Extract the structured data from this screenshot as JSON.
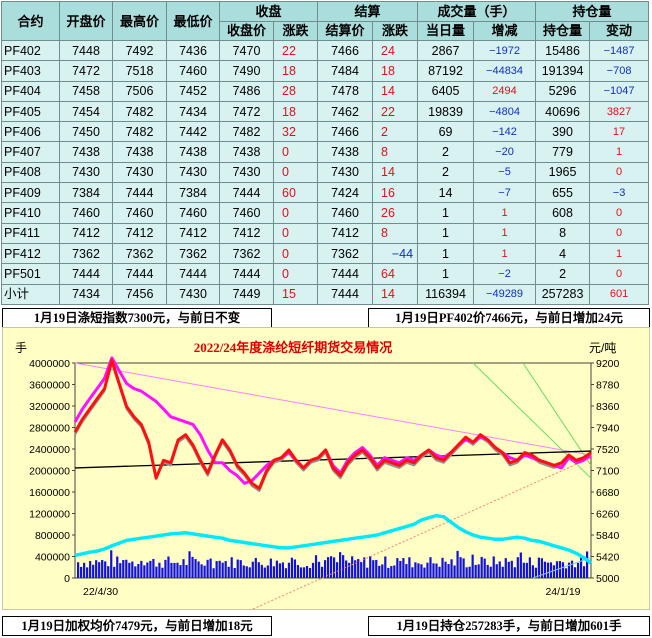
{
  "table": {
    "headers": {
      "contract": "合约",
      "open": "开盘价",
      "high": "最高价",
      "low": "最低价",
      "close_group": "收盘",
      "settle_group": "结算",
      "volume_group": "成交量（手）",
      "oi_group": "持仓量",
      "close_price": "收盘价",
      "close_change": "涨跌",
      "settle_price": "结算价",
      "settle_change": "涨跌",
      "volume_today": "当日量",
      "volume_change": "增减",
      "oi_qty": "持仓量",
      "oi_change": "变动"
    },
    "rows": [
      {
        "contract": "PF402",
        "open": "7448",
        "high": "7492",
        "low": "7436",
        "close": "7470",
        "close_chg": "22",
        "settle": "7466",
        "settle_chg": "24",
        "vol": "2867",
        "vol_chg": "−1972",
        "oi": "15486",
        "oi_chg": "−1487"
      },
      {
        "contract": "PF403",
        "open": "7472",
        "high": "7518",
        "low": "7460",
        "close": "7490",
        "close_chg": "18",
        "settle": "7484",
        "settle_chg": "18",
        "vol": "87192",
        "vol_chg": "−44834",
        "oi": "191394",
        "oi_chg": "−708"
      },
      {
        "contract": "PF404",
        "open": "7458",
        "high": "7506",
        "low": "7452",
        "close": "7486",
        "close_chg": "28",
        "settle": "7478",
        "settle_chg": "14",
        "vol": "6405",
        "vol_chg": "2494",
        "oi": "5296",
        "oi_chg": "−1047"
      },
      {
        "contract": "PF405",
        "open": "7454",
        "high": "7482",
        "low": "7434",
        "close": "7472",
        "close_chg": "18",
        "settle": "7462",
        "settle_chg": "22",
        "vol": "19839",
        "vol_chg": "−4804",
        "oi": "40696",
        "oi_chg": "3827"
      },
      {
        "contract": "PF406",
        "open": "7450",
        "high": "7482",
        "low": "7442",
        "close": "7482",
        "close_chg": "32",
        "settle": "7466",
        "settle_chg": "2",
        "vol": "69",
        "vol_chg": "−142",
        "oi": "390",
        "oi_chg": "17"
      },
      {
        "contract": "PF407",
        "open": "7438",
        "high": "7438",
        "low": "7438",
        "close": "7438",
        "close_chg": "0",
        "settle": "7438",
        "settle_chg": "8",
        "vol": "2",
        "vol_chg": "−20",
        "oi": "779",
        "oi_chg": "1"
      },
      {
        "contract": "PF408",
        "open": "7430",
        "high": "7430",
        "low": "7430",
        "close": "7430",
        "close_chg": "0",
        "settle": "7430",
        "settle_chg": "14",
        "vol": "2",
        "vol_chg": "−5",
        "oi": "1965",
        "oi_chg": "0"
      },
      {
        "contract": "PF409",
        "open": "7384",
        "high": "7444",
        "low": "7384",
        "close": "7444",
        "close_chg": "60",
        "settle": "7424",
        "settle_chg": "16",
        "vol": "14",
        "vol_chg": "−7",
        "oi": "655",
        "oi_chg": "−3"
      },
      {
        "contract": "PF410",
        "open": "7460",
        "high": "7460",
        "low": "7460",
        "close": "7460",
        "close_chg": "0",
        "settle": "7460",
        "settle_chg": "26",
        "vol": "1",
        "vol_chg": "1",
        "oi": "608",
        "oi_chg": "0"
      },
      {
        "contract": "PF411",
        "open": "7412",
        "high": "7412",
        "low": "7412",
        "close": "7412",
        "close_chg": "0",
        "settle": "7412",
        "settle_chg": "8",
        "vol": "1",
        "vol_chg": "1",
        "oi": "8",
        "oi_chg": "0"
      },
      {
        "contract": "PF412",
        "open": "7362",
        "high": "7362",
        "low": "7362",
        "close": "7362",
        "close_chg": "0",
        "settle": "7362",
        "settle_chg": "−44",
        "vol": "1",
        "vol_chg": "1",
        "oi": "4",
        "oi_chg": "1"
      },
      {
        "contract": "PF501",
        "open": "7444",
        "high": "7444",
        "low": "7444",
        "close": "7444",
        "close_chg": "0",
        "settle": "7444",
        "settle_chg": "64",
        "vol": "1",
        "vol_chg": "−2",
        "oi": "2",
        "oi_chg": "0"
      },
      {
        "contract": "小计",
        "open": "7434",
        "high": "7456",
        "low": "7430",
        "close": "7449",
        "close_chg": "15",
        "settle": "7444",
        "settle_chg": "14",
        "vol": "116394",
        "vol_chg": "−49289",
        "oi": "257283",
        "oi_chg": "601"
      }
    ]
  },
  "banners": {
    "top_left": "1月19日涤短指数7300元，与前日不变",
    "top_right": "1月19日PF402价7466元，与前日增加24元",
    "bottom_left": "1月19日加权均价7479元，与前日增加18元",
    "bottom_right": "1月19日持仓257283手，与前日增加601手"
  },
  "chart_data": {
    "type": "line",
    "title": "2022/24年度涤纶短纤期货交易情况",
    "left_unit": "手",
    "right_unit": "元/吨",
    "left_ticks": [
      "4000000",
      "3600000",
      "3200000",
      "2800000",
      "2400000",
      "2000000",
      "1600000",
      "1200000",
      "800000",
      "400000",
      "0"
    ],
    "right_ticks": [
      "9200",
      "8780",
      "8360",
      "7940",
      "7520",
      "7100",
      "6680",
      "6260",
      "5840",
      "5420",
      "5000"
    ],
    "left_range": [
      0,
      4000000
    ],
    "right_range": [
      5000,
      9200
    ],
    "x_start_label": "22/4/30",
    "x_end_label": "24/1/19",
    "series": [
      {
        "color": "#ff1010",
        "values": [
          7850,
          8100,
          8300,
          8500,
          8700,
          9250,
          8800,
          8350,
          8150,
          8000,
          7650,
          6950,
          7300,
          7250,
          7700,
          7800,
          7600,
          7300,
          7050,
          7400,
          7700,
          7500,
          7200,
          7050,
          6850,
          6750,
          7100,
          7300,
          7350,
          7500,
          7300,
          7150,
          7300,
          7350,
          7500,
          7150,
          7000,
          7250,
          7400,
          7500,
          7350,
          7150,
          7300,
          7250,
          7200,
          7300,
          7250,
          7400,
          7500,
          7350,
          7300,
          7450,
          7600,
          7750,
          7650,
          7800,
          7700,
          7550,
          7450,
          7250,
          7300,
          7450,
          7400,
          7300,
          7250,
          7200,
          7250,
          7400,
          7300,
          7350,
          7450
        ]
      },
      {
        "color": "#ff10ff",
        "values": [
          8050,
          8300,
          8500,
          8700,
          8900,
          9300,
          9050,
          8800,
          8700,
          8650,
          8550,
          8450,
          8300,
          8150,
          8100,
          8050,
          8000,
          7800,
          7500,
          7250,
          7250,
          7100,
          7000,
          6850,
          6900,
          7050,
          7200,
          7300,
          7350,
          7450,
          7300,
          7150,
          7300,
          7350,
          7500,
          7200,
          7050,
          7300,
          7450,
          7550,
          7400,
          7200,
          7350,
          7300,
          7250,
          7350,
          7300,
          7400,
          7500,
          7400,
          7350,
          7450,
          7600,
          7700,
          7650,
          7750,
          7700,
          7550,
          7450,
          7350,
          7300,
          7400,
          7350,
          7300,
          7250,
          7200,
          7150,
          7350,
          7250,
          7300,
          7400
        ]
      },
      {
        "color": "#909090",
        "values": [
          7800,
          8050,
          8250,
          8450,
          8650,
          9200,
          8750,
          8300,
          8100,
          7950,
          7600,
          6950,
          7250,
          7200,
          7650,
          7750,
          7550,
          7250,
          7000,
          7350,
          7650,
          7450,
          7150,
          7000,
          6800,
          6700,
          7050,
          7250,
          7300,
          7450,
          7250,
          7100,
          7250,
          7300,
          7450,
          7100,
          6950,
          7200,
          7350,
          7450,
          7300,
          7100,
          7250,
          7200,
          7150,
          7250,
          7200,
          7350,
          7450,
          7300,
          7250,
          7400,
          7550,
          7700,
          7600,
          7750,
          7650,
          7500,
          7400,
          7200,
          7250,
          7400,
          7350,
          7250,
          7200,
          7150,
          7200,
          7350,
          7250,
          7300,
          7400
        ]
      },
      {
        "color": "#00e8ff",
        "values": [
          420000,
          450000,
          480000,
          500000,
          540000,
          600000,
          650000,
          700000,
          720000,
          740000,
          760000,
          780000,
          800000,
          820000,
          830000,
          840000,
          820000,
          800000,
          780000,
          760000,
          740000,
          700000,
          680000,
          660000,
          640000,
          620000,
          600000,
          580000,
          560000,
          560000,
          580000,
          600000,
          620000,
          640000,
          660000,
          680000,
          700000,
          720000,
          740000,
          760000,
          780000,
          800000,
          840000,
          880000,
          920000,
          960000,
          1000000,
          1080000,
          1120000,
          1160000,
          1140000,
          1040000,
          940000,
          860000,
          800000,
          760000,
          740000,
          720000,
          720000,
          740000,
          760000,
          740000,
          700000,
          680000,
          640000,
          600000,
          560000,
          520000,
          460000,
          380000,
          280000
        ]
      }
    ]
  }
}
